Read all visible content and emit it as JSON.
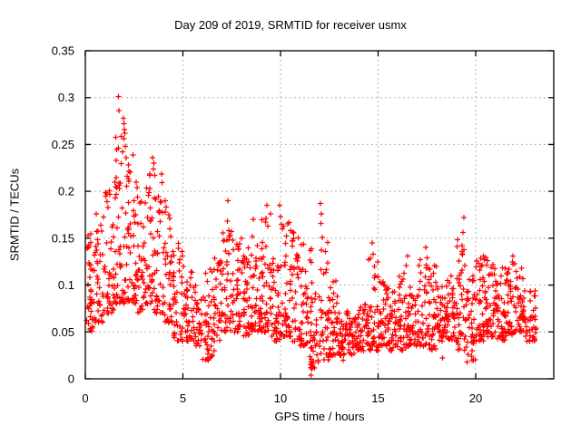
{
  "window": {
    "title": "Day 209 of 2019, SRMTID for receiver usmx"
  },
  "colors": {
    "marker": "#ff0000",
    "grid": "#b3b3b3",
    "axis": "#000000",
    "background": "#ffffff",
    "text": "#000000"
  },
  "chart_data": {
    "type": "scatter",
    "title": "Day 209 of 2019, SRMTID for receiver usmx",
    "xlabel": "GPS time / hours",
    "ylabel": "SRMTID / TECUs",
    "xlim": [
      0,
      24
    ],
    "ylim": [
      0,
      0.35
    ],
    "xticks": [
      0,
      5,
      10,
      15,
      20
    ],
    "xtick_labels": [
      "0",
      "5",
      "10",
      "15",
      "20"
    ],
    "yticks": [
      0,
      0.05,
      0.1,
      0.15,
      0.2,
      0.25,
      0.3,
      0.35
    ],
    "ytick_labels": [
      "0",
      "0.05",
      "0.1",
      "0.15",
      "0.2",
      "0.25",
      "0.3",
      "0.35"
    ],
    "grid": true,
    "border": true,
    "mirrored_ticks": true,
    "legend": "none",
    "marker": "plus",
    "marker_size": 7,
    "series_color": "#ff0000",
    "x_data_range": [
      0.1,
      23.1
    ],
    "jitter_seed": 20190209,
    "density_bins": [
      [
        0.08,
        0.5,
        0.05,
        0.16,
        40,
        1.6
      ],
      [
        0.5,
        1.0,
        0.06,
        0.19,
        40,
        1.7
      ],
      [
        1.0,
        1.5,
        0.07,
        0.21,
        42,
        1.6
      ],
      [
        1.5,
        2.0,
        0.08,
        0.27,
        44,
        1.9
      ],
      [
        2.0,
        2.5,
        0.08,
        0.25,
        42,
        2.0
      ],
      [
        2.5,
        3.0,
        0.07,
        0.21,
        40,
        1.8
      ],
      [
        3.0,
        3.5,
        0.08,
        0.22,
        40,
        1.8
      ],
      [
        3.5,
        4.0,
        0.07,
        0.22,
        40,
        1.9
      ],
      [
        4.0,
        4.5,
        0.06,
        0.18,
        38,
        1.8
      ],
      [
        4.5,
        5.0,
        0.04,
        0.15,
        38,
        1.6
      ],
      [
        5.0,
        5.5,
        0.04,
        0.12,
        36,
        1.5
      ],
      [
        5.5,
        6.0,
        0.035,
        0.1,
        36,
        1.4
      ],
      [
        6.0,
        6.5,
        0.02,
        0.12,
        38,
        1.5
      ],
      [
        6.5,
        7.0,
        0.04,
        0.13,
        38,
        1.5
      ],
      [
        7.0,
        7.5,
        0.05,
        0.17,
        40,
        1.9
      ],
      [
        7.5,
        8.0,
        0.05,
        0.15,
        40,
        1.7
      ],
      [
        8.0,
        8.5,
        0.045,
        0.14,
        40,
        1.7
      ],
      [
        8.5,
        9.0,
        0.05,
        0.16,
        40,
        1.8
      ],
      [
        9.0,
        9.5,
        0.05,
        0.18,
        40,
        1.9
      ],
      [
        9.5,
        10.0,
        0.04,
        0.15,
        40,
        1.7
      ],
      [
        10.0,
        10.5,
        0.045,
        0.19,
        40,
        2.0
      ],
      [
        10.5,
        11.0,
        0.04,
        0.16,
        40,
        1.8
      ],
      [
        11.0,
        11.5,
        0.035,
        0.15,
        38,
        1.8
      ],
      [
        11.5,
        12.0,
        0.01,
        0.15,
        38,
        1.6
      ],
      [
        12.0,
        12.5,
        0.02,
        0.16,
        38,
        1.9
      ],
      [
        12.5,
        13.0,
        0.025,
        0.11,
        38,
        1.6
      ],
      [
        13.0,
        13.5,
        0.025,
        0.075,
        40,
        1.3
      ],
      [
        13.5,
        14.0,
        0.025,
        0.07,
        40,
        1.3
      ],
      [
        14.0,
        14.5,
        0.03,
        0.08,
        40,
        1.3
      ],
      [
        14.5,
        15.0,
        0.03,
        0.13,
        40,
        1.8
      ],
      [
        15.0,
        15.5,
        0.035,
        0.11,
        40,
        1.6
      ],
      [
        15.5,
        16.0,
        0.03,
        0.1,
        40,
        1.5
      ],
      [
        16.0,
        16.5,
        0.03,
        0.12,
        40,
        1.7
      ],
      [
        16.5,
        17.0,
        0.035,
        0.1,
        40,
        1.5
      ],
      [
        17.0,
        17.5,
        0.035,
        0.13,
        40,
        1.7
      ],
      [
        17.5,
        18.0,
        0.03,
        0.125,
        40,
        1.6
      ],
      [
        18.0,
        18.5,
        0.04,
        0.1,
        40,
        1.5
      ],
      [
        18.5,
        19.0,
        0.04,
        0.11,
        40,
        1.5
      ],
      [
        19.0,
        19.5,
        0.03,
        0.15,
        40,
        1.8
      ],
      [
        19.5,
        20.0,
        0.02,
        0.11,
        40,
        1.5
      ],
      [
        20.0,
        20.5,
        0.04,
        0.13,
        42,
        1.6
      ],
      [
        20.5,
        21.0,
        0.045,
        0.13,
        42,
        1.6
      ],
      [
        21.0,
        21.5,
        0.04,
        0.12,
        42,
        1.5
      ],
      [
        21.5,
        22.0,
        0.045,
        0.13,
        44,
        1.6
      ],
      [
        22.0,
        22.5,
        0.05,
        0.12,
        44,
        1.5
      ],
      [
        22.5,
        23.1,
        0.04,
        0.1,
        40,
        1.4
      ]
    ],
    "notable_points": [
      [
        1.7,
        0.301
      ],
      [
        1.73,
        0.286
      ],
      [
        1.95,
        0.278
      ],
      [
        1.97,
        0.272
      ],
      [
        2.0,
        0.266
      ],
      [
        2.02,
        0.262
      ],
      [
        1.98,
        0.256
      ],
      [
        2.05,
        0.248
      ],
      [
        1.9,
        0.242
      ],
      [
        2.1,
        0.236
      ],
      [
        2.2,
        0.228
      ],
      [
        3.45,
        0.236
      ],
      [
        3.5,
        0.23
      ],
      [
        3.48,
        0.224
      ],
      [
        3.55,
        0.217
      ],
      [
        2.6,
        0.21
      ],
      [
        2.65,
        0.204
      ],
      [
        1.5,
        0.21
      ],
      [
        1.55,
        0.205
      ],
      [
        4.1,
        0.19
      ],
      [
        4.15,
        0.183
      ],
      [
        7.3,
        0.19
      ],
      [
        7.28,
        0.168
      ],
      [
        7.35,
        0.158
      ],
      [
        8.6,
        0.17
      ],
      [
        8.55,
        0.152
      ],
      [
        9.3,
        0.185
      ],
      [
        9.25,
        0.171
      ],
      [
        9.35,
        0.163
      ],
      [
        9.95,
        0.185
      ],
      [
        10.0,
        0.173
      ],
      [
        10.45,
        0.167
      ],
      [
        10.5,
        0.158
      ],
      [
        12.05,
        0.187
      ],
      [
        12.1,
        0.176
      ],
      [
        12.08,
        0.166
      ],
      [
        12.15,
        0.151
      ],
      [
        11.56,
        0.004
      ],
      [
        11.56,
        0.012
      ],
      [
        11.57,
        0.021
      ],
      [
        11.55,
        0.033
      ],
      [
        11.56,
        0.046
      ],
      [
        11.58,
        0.059
      ],
      [
        11.55,
        0.072
      ],
      [
        11.57,
        0.086
      ],
      [
        14.7,
        0.145
      ],
      [
        14.75,
        0.133
      ],
      [
        16.5,
        0.131
      ],
      [
        16.45,
        0.121
      ],
      [
        17.45,
        0.14
      ],
      [
        17.5,
        0.129
      ],
      [
        17.55,
        0.118
      ],
      [
        19.4,
        0.172
      ],
      [
        19.35,
        0.156
      ],
      [
        19.3,
        0.136
      ],
      [
        19.45,
        0.121
      ],
      [
        19.55,
        0.018
      ],
      [
        19.6,
        0.026
      ],
      [
        20.4,
        0.131
      ],
      [
        20.6,
        0.126
      ],
      [
        20.8,
        0.119
      ],
      [
        21.9,
        0.131
      ],
      [
        22.0,
        0.123
      ],
      [
        18.3,
        0.022
      ],
      [
        6.3,
        0.02
      ],
      [
        6.5,
        0.025
      ],
      [
        6.6,
        0.03
      ],
      [
        13.2,
        0.02
      ],
      [
        12.6,
        0.025
      ]
    ]
  }
}
